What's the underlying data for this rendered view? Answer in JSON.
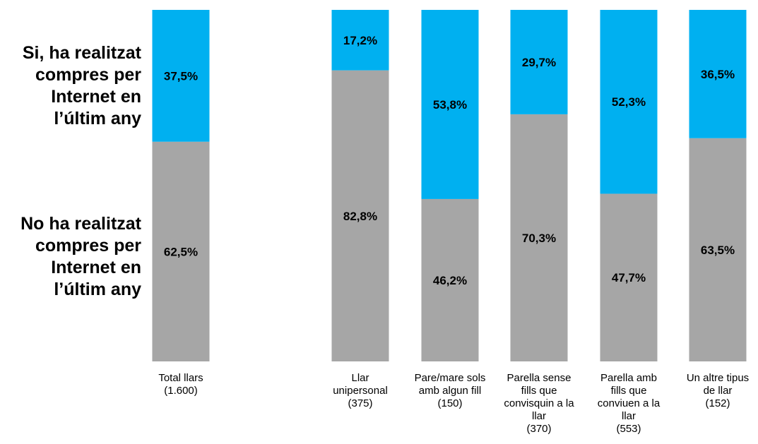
{
  "chart_data": {
    "type": "bar",
    "stacked": true,
    "percent_stacked": true,
    "categories": [
      [
        "Total llars",
        "(1.600)"
      ],
      [
        "Llar",
        "unipersonal",
        "(375)"
      ],
      [
        "Pare/mare sols",
        "amb algun fill",
        "(150)"
      ],
      [
        "Parella sense",
        "fills que",
        "convisquin a la",
        "llar",
        "(370)"
      ],
      [
        "Parella amb",
        "fills que",
        "conviuen a la",
        "llar",
        "(553)"
      ],
      [
        "Un altre tipus",
        "de llar",
        "(152)"
      ]
    ],
    "series": [
      {
        "name": [
          "No ha realitzat",
          "compres per",
          "Internet en",
          "l’últim any"
        ],
        "color": "#a6a6a6",
        "values": [
          62.5,
          82.8,
          46.2,
          70.3,
          47.7,
          63.5
        ],
        "labels": [
          "62,5%",
          "82,8%",
          "46,2%",
          "70,3%",
          "47,7%",
          "63,5%"
        ]
      },
      {
        "name": [
          "Si, ha realitzat",
          "compres per",
          "Internet en",
          "l’últim any"
        ],
        "color": "#00b0f0",
        "values": [
          37.5,
          17.2,
          53.8,
          29.7,
          52.3,
          36.5
        ],
        "labels": [
          "37,5%",
          "17,2%",
          "53,8%",
          "29,7%",
          "52,3%",
          "36,5%"
        ]
      }
    ],
    "ylim": [
      0,
      100
    ],
    "grid": false,
    "legend_position": "left"
  }
}
